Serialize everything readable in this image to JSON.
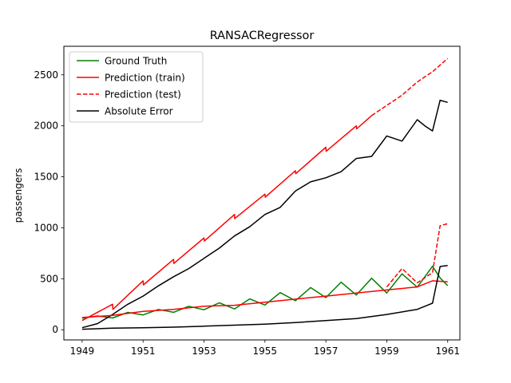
{
  "chart_data": {
    "type": "line",
    "title": "RANSACRegressor",
    "xlabel": "",
    "ylabel": "passengers",
    "xlim": [
      1948.4,
      1961.4
    ],
    "ylim": [
      -100,
      2780
    ],
    "xticks": [
      1949,
      1951,
      1953,
      1955,
      1957,
      1959,
      1961
    ],
    "yticks": [
      0,
      500,
      1000,
      1500,
      2000,
      2500
    ],
    "legend_position": "top-left",
    "grid": false,
    "colors": {
      "ground_truth": "#008000",
      "prediction_train": "#ff0000",
      "prediction_test": "#ff0000",
      "absolute_error": "#000000"
    },
    "legend": [
      {
        "label": "Ground Truth",
        "color": "#008000",
        "dash": "solid"
      },
      {
        "label": "Prediction (train)",
        "color": "#ff0000",
        "dash": "solid"
      },
      {
        "label": "Prediction (test)",
        "color": "#ff0000",
        "dash": "dashed"
      },
      {
        "label": "Absolute Error",
        "color": "#000000",
        "dash": "solid"
      }
    ],
    "series": [
      {
        "name": "Ground Truth",
        "color": "#008000",
        "dash": "solid",
        "x": [
          1949,
          1949.5,
          1950,
          1950.5,
          1951,
          1951.5,
          1952,
          1952.5,
          1953,
          1953.5,
          1954,
          1954.5,
          1955,
          1955.5,
          1956,
          1956.5,
          1957,
          1957.5,
          1958,
          1958.5,
          1959,
          1959.5,
          1960,
          1960.5,
          1960.75,
          1961
        ],
        "y": [
          112,
          135,
          115,
          170,
          145,
          199,
          171,
          230,
          196,
          264,
          204,
          302,
          242,
          364,
          284,
          413,
          315,
          467,
          340,
          505,
          360,
          548,
          417,
          622,
          508,
          432
        ]
      },
      {
        "name": "Prediction (train)",
        "color": "#ff0000",
        "dash": "solid",
        "x": [
          1949,
          1950,
          1950.01,
          1951,
          1951.01,
          1952,
          1952.01,
          1953,
          1953.01,
          1954,
          1954.01,
          1955,
          1955.01,
          1956,
          1956.01,
          1957,
          1957.01,
          1958,
          1958.01,
          1958.5
        ],
        "y": [
          90,
          250,
          200,
          480,
          440,
          690,
          650,
          900,
          870,
          1130,
          1090,
          1330,
          1300,
          1560,
          1530,
          1790,
          1750,
          2000,
          1970,
          2100
        ]
      },
      {
        "name": "Prediction (test)",
        "color": "#ff0000",
        "dash": "dashed",
        "x": [
          1958.5,
          1959,
          1959.5,
          1960,
          1960.5,
          1961
        ],
        "y": [
          2100,
          2200,
          2300,
          2430,
          2530,
          2660
        ]
      },
      {
        "name": "Absolute Error",
        "color": "#000000",
        "dash": "solid",
        "x": [
          1949,
          1949.5,
          1950,
          1950.5,
          1951,
          1951.5,
          1952,
          1952.5,
          1953,
          1953.5,
          1954,
          1954.5,
          1955,
          1955.5,
          1956,
          1956.5,
          1957,
          1957.5,
          1958,
          1958.5,
          1959,
          1959.5,
          1960,
          1960.25,
          1960.5,
          1960.75,
          1961
        ],
        "y": [
          20,
          60,
          150,
          250,
          330,
          430,
          520,
          600,
          700,
          800,
          920,
          1010,
          1130,
          1200,
          1360,
          1450,
          1490,
          1550,
          1680,
          1700,
          1900,
          1850,
          2060,
          2000,
          1950,
          2250,
          2230
        ]
      },
      {
        "name": "",
        "color": "#ff0000",
        "dash": "solid",
        "x": [
          1949,
          1950,
          1951,
          1952,
          1953,
          1954,
          1955,
          1956,
          1957,
          1958,
          1959,
          1960,
          1960.5,
          1961
        ],
        "y": [
          120,
          140,
          180,
          200,
          230,
          240,
          270,
          300,
          330,
          360,
          390,
          420,
          480,
          470
        ]
      },
      {
        "name": "",
        "color": "#ff0000",
        "dash": "dashed",
        "x": [
          1959,
          1959.5,
          1960,
          1960.5,
          1960.75,
          1961
        ],
        "y": [
          420,
          600,
          460,
          560,
          1020,
          1040
        ]
      },
      {
        "name": "",
        "color": "#000000",
        "dash": "solid",
        "x": [
          1949,
          1950,
          1951,
          1952,
          1953,
          1954,
          1955,
          1956,
          1957,
          1958,
          1959,
          1960,
          1960.5,
          1960.75,
          1961
        ],
        "y": [
          5,
          15,
          20,
          25,
          35,
          45,
          55,
          70,
          90,
          110,
          150,
          200,
          260,
          620,
          630
        ]
      }
    ]
  }
}
